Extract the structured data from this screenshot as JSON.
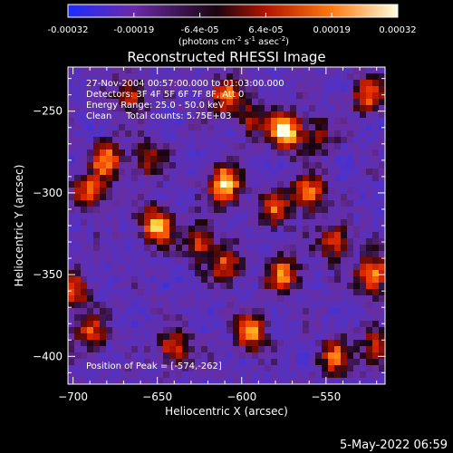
{
  "colorbar": {
    "ticks": [
      "-0.00032",
      "-0.00019",
      "-6.4e-05",
      "6.4e-05",
      "0.00019",
      "0.00032"
    ],
    "unit_main": "(photons cm",
    "unit_sup1": "-2",
    "unit_mid1": " s",
    "unit_sup2": "-1",
    "unit_mid2": " asec",
    "unit_sup3": "-2",
    "unit_end": ")",
    "colors": [
      "#1e2cff",
      "#6a2aa8",
      "#1a0410",
      "#b21400",
      "#ff7a10",
      "#ffffe0"
    ]
  },
  "chart_data": {
    "type": "heatmap",
    "title": "Reconstructed RHESSI Image",
    "xlabel": "Heliocentric X (arcsec)",
    "ylabel": "Heliocentric Y (arcsec)",
    "xlim": [
      -703,
      -515
    ],
    "ylim": [
      -417,
      -223
    ],
    "xticks": [
      -700,
      -650,
      -600,
      -550
    ],
    "yticks": [
      -250,
      -300,
      -350,
      -400
    ],
    "xtick_labels": [
      "−700",
      "−650",
      "−600",
      "−550"
    ],
    "ytick_labels": [
      "−250",
      "−300",
      "−350",
      "−400"
    ],
    "zlim": [
      -0.00032,
      0.00032
    ],
    "peak": [
      -574,
      -262
    ],
    "sources": [
      {
        "x": -574,
        "y": -262,
        "v": 1.0
      },
      {
        "x": -610,
        "y": -295,
        "v": 0.95
      },
      {
        "x": -650,
        "y": -320,
        "v": 0.85
      },
      {
        "x": -680,
        "y": -280,
        "v": 0.7
      },
      {
        "x": -690,
        "y": -300,
        "v": 0.65
      },
      {
        "x": -625,
        "y": -330,
        "v": 0.6
      },
      {
        "x": -560,
        "y": -300,
        "v": 0.75
      },
      {
        "x": -545,
        "y": -330,
        "v": 0.6
      },
      {
        "x": -522,
        "y": -350,
        "v": 0.8
      },
      {
        "x": -525,
        "y": -240,
        "v": 0.6
      },
      {
        "x": -580,
        "y": -310,
        "v": 0.55
      },
      {
        "x": -610,
        "y": -345,
        "v": 0.6
      },
      {
        "x": -575,
        "y": -350,
        "v": 0.7
      },
      {
        "x": -595,
        "y": -385,
        "v": 0.75
      },
      {
        "x": -640,
        "y": -395,
        "v": 0.6
      },
      {
        "x": -700,
        "y": -360,
        "v": 0.6
      },
      {
        "x": -690,
        "y": -385,
        "v": 0.55
      },
      {
        "x": -665,
        "y": -240,
        "v": 0.55
      },
      {
        "x": -610,
        "y": -240,
        "v": 0.6
      },
      {
        "x": -545,
        "y": -400,
        "v": 0.6
      },
      {
        "x": -520,
        "y": -395,
        "v": 0.55
      },
      {
        "x": -655,
        "y": -280,
        "v": 0.45
      },
      {
        "x": -595,
        "y": -255,
        "v": 0.45
      },
      {
        "x": -555,
        "y": -265,
        "v": 0.4
      }
    ]
  },
  "annotations": {
    "line1": "27-Nov-2004 00:57:00.000 to 01:03:00.000",
    "line2": "Detectors: 3F 4F 5F 6F 7F 8F, Att 0",
    "line3": "Energy Range: 25.0 - 50.0 keV",
    "line4": "Clean     Total counts: 5.75E+03",
    "peak_label": "Position of Peak = [-574,-262]"
  },
  "footer": {
    "date": "5-May-2022 06:59"
  }
}
